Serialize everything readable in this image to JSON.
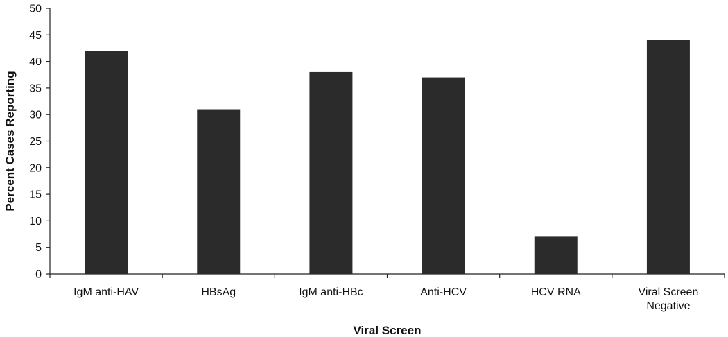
{
  "chart_data": {
    "type": "bar",
    "categories": [
      [
        "IgM anti-HAV"
      ],
      [
        "HBsAg"
      ],
      [
        "IgM anti-HBc"
      ],
      [
        "Anti-HCV"
      ],
      [
        "HCV RNA"
      ],
      [
        "Viral Screen",
        "Negative"
      ]
    ],
    "values": [
      42,
      31,
      38,
      37,
      7,
      44
    ],
    "title": "",
    "xlabel": "Viral Screen",
    "ylabel": "Percent Cases Reporting",
    "ylim": [
      0,
      50
    ],
    "yticks": [
      0,
      5,
      10,
      15,
      20,
      25,
      30,
      35,
      40,
      45,
      50
    ],
    "grid": false,
    "legend": "none",
    "bar_color": "#2b2b2b"
  }
}
